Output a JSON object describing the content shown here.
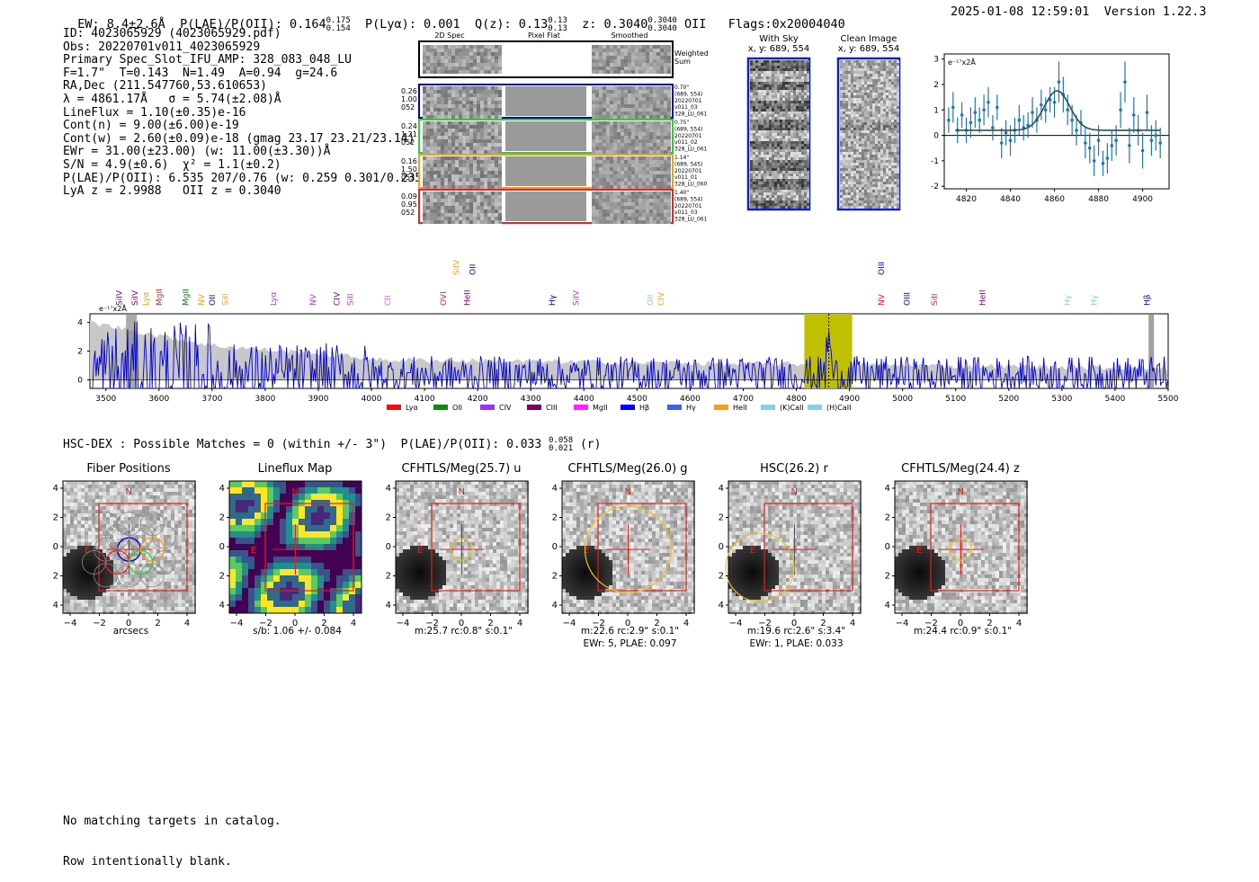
{
  "header": {
    "summary": "EW: 8.4±2.6Å  P(LAE)/P(OII): 0.164 0.175/0.154  P(Lyα): 0.001  Q(z): 0.13 0.13/0.13  z: 0.3040 0.3040/0.3040 OII  Flags:0x20004040",
    "ew": "EW: 8.4±2.6Å",
    "plae": "P(LAE)/P(OII): 0.164",
    "plae_hi": "0.175",
    "plae_lo": "0.154",
    "plya": "P(Lyα): 0.001",
    "qz": "Q(z): 0.13",
    "qz_hi": "0.13",
    "qz_lo": "0.13",
    "z": "z: 0.3040",
    "z_hi": "0.3040",
    "z_lo": "0.3040",
    "z_line": "OII",
    "flags": "Flags:0x20004040",
    "datetime": "2025-01-08 12:59:01",
    "version": "Version 1.22.3"
  },
  "info_lines": [
    "ID: 4023065929 (4023065929.pdf)",
    "Obs: 20220701v011_4023065929",
    "Primary Spec_Slot_IFU_AMP: 328_083_048_LU",
    "F=1.7\"  T=0.143  N=1.49  A=0.94  g=24.6",
    "RA,Dec (211.547760,53.610653)",
    "λ = 4861.17Å   σ = 5.74(±2.08)Å",
    "LineFlux = 1.10(±0.35)e-16",
    "Cont(n) = 9.00(±6.00)e-19",
    "Cont(w) = 2.60(±0.09)e-18 (gmag 23.17 23.21/23.14)",
    "EWr = 31.00(±23.00) (w: 11.00(±3.30))Å",
    "S/N = 4.9(±0.6)  χ² = 1.1(±0.2)",
    "P(LAE)/P(OII): 6.535 207/0.76 (w: 0.259 0.301/0.235)",
    "LyA z = 2.9988   OII z = 0.3040"
  ],
  "cutouts": {
    "col_labels": [
      "2D Spec",
      "Pixel Flat",
      "Smoothed"
    ],
    "weighted_label": "Weighted Sum",
    "rows": [
      {
        "left": [
          "0.26",
          "1.00",
          "052"
        ],
        "right": [
          "0.70\"",
          "(689, 554)",
          "20220701",
          "v011_03",
          "328_LU_061"
        ],
        "color": "#0000cc"
      },
      {
        "left": [
          "0.24",
          "1.21",
          "052"
        ],
        "right": [
          "0.75\"",
          "(689, 554)",
          "20220701",
          "v011_02",
          "328_LU_061"
        ],
        "color": "#33cc33"
      },
      {
        "left": [
          "0.16",
          "1.50",
          "053"
        ],
        "right": [
          "1.14\"",
          "(689, 545)",
          "20220701",
          "v011_01",
          "328_LU_060"
        ],
        "color": "#f0a020"
      },
      {
        "left": [
          "0.09",
          "0.95",
          "052"
        ],
        "right": [
          "1.40\"",
          "(689, 554)",
          "20220701",
          "v011_03",
          "328_LU_061"
        ],
        "color": "#ee2222"
      }
    ]
  },
  "sky": {
    "with_sky_title": "With Sky",
    "with_sky_coords": "x, y: 689, 554",
    "clean_title": "Clean Image",
    "clean_coords": "x, y: 689, 554"
  },
  "chart_data": [
    {
      "type": "scatter",
      "title": "",
      "ylabel_unit": "e⁻¹⁷x2Å",
      "xlim": [
        4810,
        4912
      ],
      "ylim": [
        -2.1,
        3.2
      ],
      "xticks": [
        "4820",
        "4840",
        "4860",
        "4880",
        "4900"
      ],
      "yticks": [
        "3",
        "2",
        "1",
        "0",
        "-1",
        "-2"
      ],
      "x": [
        4812,
        4814,
        4816,
        4818,
        4820,
        4822,
        4824,
        4826,
        4828,
        4830,
        4832,
        4834,
        4836,
        4838,
        4840,
        4842,
        4844,
        4846,
        4848,
        4850,
        4852,
        4854,
        4856,
        4858,
        4860,
        4862,
        4864,
        4866,
        4868,
        4870,
        4872,
        4874,
        4876,
        4878,
        4880,
        4882,
        4884,
        4886,
        4888,
        4890,
        4892,
        4894,
        4896,
        4898,
        4900,
        4902,
        4904,
        4906,
        4908
      ],
      "y": [
        0.6,
        1.1,
        0.2,
        0.8,
        0.2,
        0.5,
        0.9,
        0.6,
        1.0,
        1.3,
        0.3,
        1.1,
        -0.3,
        0.1,
        -0.2,
        0.2,
        0.6,
        0.3,
        0.4,
        0.9,
        0.6,
        1.2,
        1.0,
        1.4,
        1.3,
        2.1,
        1.6,
        1.0,
        0.6,
        0.2,
        0.5,
        -0.3,
        -0.5,
        -1.0,
        -0.2,
        -1.1,
        -0.9,
        -0.4,
        -0.2,
        1.0,
        2.1,
        -0.4,
        0.8,
        0.2,
        -0.6,
        0.9,
        -0.2,
        0.0,
        -0.3
      ],
      "err": [
        0.5,
        0.6,
        0.5,
        0.5,
        0.5,
        0.6,
        0.6,
        0.5,
        0.6,
        0.6,
        0.5,
        0.5,
        0.6,
        0.5,
        0.6,
        0.5,
        0.6,
        0.5,
        0.5,
        0.6,
        0.5,
        0.6,
        0.5,
        0.5,
        0.6,
        0.8,
        0.7,
        0.6,
        0.6,
        0.6,
        0.5,
        0.6,
        0.6,
        0.6,
        0.6,
        0.5,
        0.6,
        0.6,
        0.6,
        0.7,
        0.8,
        0.7,
        0.7,
        0.6,
        0.7,
        0.7,
        0.6,
        0.6,
        0.6
      ],
      "fit": {
        "center": 4861.2,
        "sigma": 5.74,
        "amp": 1.55,
        "cont": 0.2
      }
    },
    {
      "type": "line",
      "title": "",
      "ylabel_unit": "e⁻¹⁷x2Å",
      "xlim": [
        3470,
        5500
      ],
      "ylim": [
        -0.6,
        4.6
      ],
      "xticks": [
        "3500",
        "3600",
        "3700",
        "3800",
        "3900",
        "4000",
        "4100",
        "4200",
        "4300",
        "4400",
        "4500",
        "4600",
        "4700",
        "4800",
        "4900",
        "5000",
        "5100",
        "5200",
        "5300",
        "5400",
        "5500"
      ],
      "yticks": [
        "4",
        "2",
        "0"
      ],
      "highlight_band": [
        4815,
        4905
      ],
      "emission_line": 4861,
      "series": [
        {
          "name": "spectrum",
          "color": "#0000cc"
        },
        {
          "name": "error",
          "color": "#bbbbbb"
        }
      ],
      "line_labels": [
        {
          "name": "SiIV",
          "x": 3525,
          "color": "#800080"
        },
        {
          "name": "SiIV",
          "x": 3555,
          "color": "#800080"
        },
        {
          "name": "Lyα",
          "x": 3575,
          "color": "#f0a020"
        },
        {
          "name": "MgII",
          "x": 3600,
          "color": "#ee2222"
        },
        {
          "name": "MgII",
          "x": 3650,
          "color": "#008800"
        },
        {
          "name": "NV",
          "x": 3680,
          "color": "#f0a020"
        },
        {
          "name": "OII",
          "x": 3700,
          "color": "#0000cc"
        },
        {
          "name": "SiII",
          "x": 3725,
          "color": "#f0a020"
        },
        {
          "name": "Lyα",
          "x": 3815,
          "color": "#b040d0"
        },
        {
          "name": "NV",
          "x": 3890,
          "color": "#b040d0"
        },
        {
          "name": "CIV",
          "x": 3935,
          "color": "#800080"
        },
        {
          "name": "SiII",
          "x": 3960,
          "color": "#b040d0"
        },
        {
          "name": "CII",
          "x": 4030,
          "color": "#e060e0"
        },
        {
          "name": "OVI",
          "x": 4135,
          "color": "#ee2222"
        },
        {
          "name": "HeII",
          "x": 4180,
          "color": "#800080"
        },
        {
          "name": "SiIV",
          "x": 4160,
          "color": "#f0a020"
        },
        {
          "name": "OII",
          "x": 4190,
          "color": "#0000cc"
        },
        {
          "name": "Hγ",
          "x": 4340,
          "color": "#0000cc"
        },
        {
          "name": "SiIV",
          "x": 4385,
          "color": "#b040d0"
        },
        {
          "name": "OII",
          "x": 4525,
          "color": "#87ceeb"
        },
        {
          "name": "CIV",
          "x": 4545,
          "color": "#f0a020"
        },
        {
          "name": "OIII",
          "x": 4960,
          "color": "#0000cc"
        },
        {
          "name": "NV",
          "x": 4960,
          "color": "#ee2222"
        },
        {
          "name": "OIII",
          "x": 5008,
          "color": "#0000cc"
        },
        {
          "name": "SiII",
          "x": 5060,
          "color": "#ee2222"
        },
        {
          "name": "HeII",
          "x": 5150,
          "color": "#800080"
        },
        {
          "name": "Hγ",
          "x": 5310,
          "color": "#87ceeb"
        },
        {
          "name": "Hγ",
          "x": 5360,
          "color": "#87ceeb"
        },
        {
          "name": "Hβ",
          "x": 5460,
          "color": "#0000cc"
        }
      ],
      "legend": [
        {
          "name": "Lyα",
          "color": "#ee1111"
        },
        {
          "name": "OII",
          "color": "#118811"
        },
        {
          "name": "CIV",
          "color": "#9933ee"
        },
        {
          "name": "CIII",
          "color": "#800060"
        },
        {
          "name": "MgII",
          "color": "#ff22ff"
        },
        {
          "name": "Hβ",
          "color": "#0000ff"
        },
        {
          "name": "Hγ",
          "color": "#4060e0"
        },
        {
          "name": "HeII",
          "color": "#f0a020"
        },
        {
          "name": "(K)CaII",
          "color": "#87ceeb"
        },
        {
          "name": "(H)CaII",
          "color": "#87ceeb"
        }
      ]
    }
  ],
  "hsc_line": "HSC-DEX : Possible Matches = 0 (within +/- 3\")  P(LAE)/P(OII): 0.033",
  "hsc_hi": "0.058",
  "hsc_lo": "0.021",
  "hsc_band": "(r)",
  "panels": [
    {
      "title": "Fiber Positions",
      "caption": "arcsecs",
      "caption2": ""
    },
    {
      "title": "Lineflux Map",
      "caption": "s/b: 1.06 +/- 0.084",
      "caption2": ""
    },
    {
      "title": "CFHTLS/Meg(25.7) u",
      "caption": "m:25.7 rc:0.8\"  s:0.1\"",
      "caption2": ""
    },
    {
      "title": "CFHTLS/Meg(26.0) g",
      "caption": "m:22.6 rc:2.9\"  s:0.1\"",
      "caption2": "EWr: 5, PLAE: 0.097"
    },
    {
      "title": "HSC(26.2) r",
      "caption": "m:19.6  rc:2.6\"  s:3.4\"",
      "caption2": "EWr: 1, PLAE: 0.033"
    },
    {
      "title": "CFHTLS/Meg(24.4) z",
      "caption": "m:24.4 rc:0.9\"  s:0.1\"",
      "caption2": ""
    }
  ],
  "panel_axis": {
    "ticks": [
      "4",
      "2",
      "0",
      "−2",
      "−4"
    ],
    "xticks": [
      "−4",
      "−2",
      "0",
      "2",
      "4"
    ],
    "north": "N",
    "east": "E"
  },
  "footer": [
    "No matching targets in catalog.",
    "Row intentionally blank."
  ]
}
